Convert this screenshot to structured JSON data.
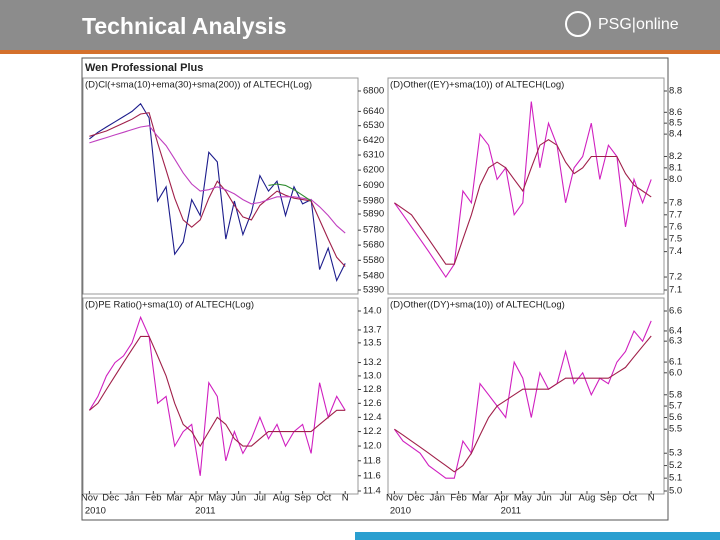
{
  "header": {
    "title": "Technical Analysis",
    "logo": "PSG|online",
    "panel_title": "Wen Professional Plus"
  },
  "x_group_labels": [
    "2010",
    "2011"
  ],
  "chart_data": [
    {
      "type": "line",
      "title": "(D)Cl(+sma(10)+ema(30)+sma(200)) of ALTECH(Log)",
      "log_scale": true,
      "x": [
        0,
        0.4,
        0.8,
        1.2,
        1.6,
        2,
        2.4,
        2.8,
        3.2,
        3.6,
        4,
        4.4,
        4.8,
        5.2,
        5.6,
        6,
        6.4,
        6.8,
        7.2,
        7.6,
        8,
        8.4,
        8.8,
        9.2,
        9.6,
        10,
        10.4,
        10.8,
        11.2,
        11.6,
        12
      ],
      "xlim": [
        -0.3,
        12.6
      ],
      "xticks": [
        {
          "value": 0,
          "label": "Nov"
        },
        {
          "value": 1,
          "label": "Dec"
        },
        {
          "value": 2,
          "label": "Jan"
        },
        {
          "value": 3,
          "label": "Feb"
        },
        {
          "value": 4,
          "label": "Mar"
        },
        {
          "value": 5,
          "label": "Apr"
        },
        {
          "value": 6,
          "label": "May"
        },
        {
          "value": 7,
          "label": "Jun"
        },
        {
          "value": 8,
          "label": "Jul"
        },
        {
          "value": 9,
          "label": "Aug"
        },
        {
          "value": 10,
          "label": "Sep"
        },
        {
          "value": 11,
          "label": "Oct"
        },
        {
          "value": 12,
          "label": "N"
        }
      ],
      "ylim": [
        5390,
        6800
      ],
      "yticks": [
        6800,
        6640,
        6530,
        6420,
        6310,
        6200,
        6090,
        5980,
        5890,
        5780,
        5680,
        5580,
        5480,
        5390
      ],
      "series": [
        {
          "color": "#1c1c8c",
          "values": [
            6430,
            6480,
            6520,
            6560,
            6600,
            6640,
            6700,
            6590,
            5980,
            6080,
            5620,
            5700,
            5990,
            5880,
            6330,
            6260,
            5720,
            5980,
            5750,
            5900,
            6160,
            6050,
            6120,
            5880,
            6080,
            5960,
            5990,
            5520,
            5660,
            5450,
            5560
          ]
        },
        {
          "color": "#a0204a",
          "values": [
            6450,
            6470,
            6490,
            6520,
            6550,
            6580,
            6620,
            6630,
            6400,
            6200,
            6000,
            5850,
            5800,
            5850,
            6000,
            6120,
            6050,
            5950,
            5870,
            5850,
            5950,
            6000,
            6050,
            6020,
            6000,
            5990,
            5980,
            5850,
            5720,
            5600,
            5540
          ]
        },
        {
          "color": "#c040c0",
          "values": [
            6400,
            6420,
            6440,
            6460,
            6480,
            6500,
            6520,
            6530,
            6450,
            6380,
            6280,
            6180,
            6100,
            6050,
            6060,
            6080,
            6060,
            6030,
            5990,
            5960,
            5970,
            5990,
            6010,
            6010,
            6010,
            6000,
            5990,
            5940,
            5880,
            5810,
            5760
          ]
        },
        {
          "color": "#2e8b2e",
          "values": [
            null,
            null,
            null,
            null,
            null,
            null,
            null,
            null,
            null,
            null,
            null,
            null,
            null,
            null,
            null,
            null,
            null,
            null,
            null,
            null,
            null,
            6090,
            6100,
            6090,
            6060,
            6020,
            5980,
            null,
            null,
            null,
            null
          ]
        }
      ]
    },
    {
      "type": "line",
      "title": "(D)Other((EY)+sma(10)) of ALTECH(Log)",
      "log_scale": true,
      "x": [
        0,
        0.4,
        0.8,
        1.2,
        1.6,
        2,
        2.4,
        2.8,
        3.2,
        3.6,
        4,
        4.4,
        4.8,
        5.2,
        5.6,
        6,
        6.4,
        6.8,
        7.2,
        7.6,
        8,
        8.4,
        8.8,
        9.2,
        9.6,
        10,
        10.4,
        10.8,
        11.2,
        11.6,
        12
      ],
      "xlim": [
        -0.3,
        12.6
      ],
      "xticks": [
        {
          "value": 0,
          "label": "Nov"
        },
        {
          "value": 1,
          "label": "Dec"
        },
        {
          "value": 2,
          "label": "Jan"
        },
        {
          "value": 3,
          "label": "Feb"
        },
        {
          "value": 4,
          "label": "Mar"
        },
        {
          "value": 5,
          "label": "Apr"
        },
        {
          "value": 6,
          "label": "May"
        },
        {
          "value": 7,
          "label": "Jun"
        },
        {
          "value": 8,
          "label": "Jul"
        },
        {
          "value": 9,
          "label": "Aug"
        },
        {
          "value": 10,
          "label": "Sep"
        },
        {
          "value": 11,
          "label": "Oct"
        },
        {
          "value": 12,
          "label": "N"
        }
      ],
      "ylim": [
        7.1,
        8.8
      ],
      "yticks": [
        8.8,
        8.6,
        8.5,
        8.4,
        8.2,
        8.1,
        {
          "value": 8,
          "label": "8.0"
        },
        7.8,
        7.7,
        7.6,
        7.5,
        7.4,
        7.2,
        7.1
      ],
      "series": [
        {
          "color": "#d020c0",
          "values": [
            7.8,
            7.7,
            7.6,
            7.5,
            7.4,
            7.3,
            7.2,
            7.3,
            7.9,
            7.8,
            8.4,
            8.3,
            8.0,
            8.1,
            7.7,
            7.8,
            8.7,
            8.1,
            8.5,
            8.3,
            7.8,
            8.1,
            8.2,
            8.5,
            8.0,
            8.3,
            8.2,
            7.6,
            8.0,
            7.8,
            8.0
          ]
        },
        {
          "color": "#a0204a",
          "values": [
            7.8,
            7.75,
            7.7,
            7.6,
            7.5,
            7.4,
            7.3,
            7.3,
            7.5,
            7.7,
            7.95,
            8.1,
            8.15,
            8.1,
            8.0,
            7.9,
            8.1,
            8.3,
            8.35,
            8.3,
            8.15,
            8.05,
            8.1,
            8.2,
            8.2,
            8.2,
            8.2,
            8.05,
            7.95,
            7.9,
            7.85
          ]
        }
      ]
    },
    {
      "type": "line",
      "title": "(D)PE Ratio()+sma(10) of ALTECH(Log)",
      "log_scale": true,
      "x": [
        0,
        0.4,
        0.8,
        1.2,
        1.6,
        2,
        2.4,
        2.8,
        3.2,
        3.6,
        4,
        4.4,
        4.8,
        5.2,
        5.6,
        6,
        6.4,
        6.8,
        7.2,
        7.6,
        8,
        8.4,
        8.8,
        9.2,
        9.6,
        10,
        10.4,
        10.8,
        11.2,
        11.6,
        12
      ],
      "xlim": [
        -0.3,
        12.6
      ],
      "xticks": [
        {
          "value": 0,
          "label": "Nov"
        },
        {
          "value": 1,
          "label": "Dec"
        },
        {
          "value": 2,
          "label": "Jan"
        },
        {
          "value": 3,
          "label": "Feb"
        },
        {
          "value": 4,
          "label": "Mar"
        },
        {
          "value": 5,
          "label": "Apr"
        },
        {
          "value": 6,
          "label": "May"
        },
        {
          "value": 7,
          "label": "Jun"
        },
        {
          "value": 8,
          "label": "Jul"
        },
        {
          "value": 9,
          "label": "Aug"
        },
        {
          "value": 10,
          "label": "Sep"
        },
        {
          "value": 11,
          "label": "Oct"
        },
        {
          "value": 12,
          "label": "N"
        }
      ],
      "ylim": [
        11.4,
        14.0
      ],
      "yticks": [
        {
          "value": 14,
          "label": "14.0"
        },
        13.7,
        13.5,
        13.2,
        {
          "value": 13,
          "label": "13.0"
        },
        12.8,
        12.6,
        12.4,
        12.2,
        {
          "value": 12,
          "label": "12.0"
        },
        11.8,
        11.6,
        11.4
      ],
      "series": [
        {
          "color": "#d020c0",
          "values": [
            12.5,
            12.7,
            13.0,
            13.2,
            13.3,
            13.5,
            13.9,
            13.6,
            12.6,
            12.7,
            12.0,
            12.2,
            12.3,
            11.6,
            12.9,
            12.7,
            11.8,
            12.2,
            11.9,
            12.1,
            12.4,
            12.1,
            12.3,
            12.0,
            12.2,
            12.3,
            11.9,
            12.9,
            12.4,
            12.7,
            12.5
          ]
        },
        {
          "color": "#a0204a",
          "values": [
            12.5,
            12.6,
            12.8,
            13.0,
            13.2,
            13.4,
            13.6,
            13.6,
            13.3,
            13.0,
            12.6,
            12.3,
            12.2,
            12.0,
            12.2,
            12.4,
            12.3,
            12.1,
            12.0,
            12.0,
            12.1,
            12.2,
            12.2,
            12.2,
            12.2,
            12.2,
            12.2,
            12.3,
            12.4,
            12.5,
            12.5
          ]
        }
      ]
    },
    {
      "type": "line",
      "title": "(D)Other((DY)+sma(10)) of ALTECH(Log)",
      "log_scale": true,
      "x": [
        0,
        0.4,
        0.8,
        1.2,
        1.6,
        2,
        2.4,
        2.8,
        3.2,
        3.6,
        4,
        4.4,
        4.8,
        5.2,
        5.6,
        6,
        6.4,
        6.8,
        7.2,
        7.6,
        8,
        8.4,
        8.8,
        9.2,
        9.6,
        10,
        10.4,
        10.8,
        11.2,
        11.6,
        12
      ],
      "xlim": [
        -0.3,
        12.6
      ],
      "xticks": [
        {
          "value": 0,
          "label": "Nov"
        },
        {
          "value": 1,
          "label": "Dec"
        },
        {
          "value": 2,
          "label": "Jan"
        },
        {
          "value": 3,
          "label": "Feb"
        },
        {
          "value": 4,
          "label": "Mar"
        },
        {
          "value": 5,
          "label": "Apr"
        },
        {
          "value": 6,
          "label": "May"
        },
        {
          "value": 7,
          "label": "Jun"
        },
        {
          "value": 8,
          "label": "Jul"
        },
        {
          "value": 9,
          "label": "Aug"
        },
        {
          "value": 10,
          "label": "Sep"
        },
        {
          "value": 11,
          "label": "Oct"
        },
        {
          "value": 12,
          "label": "N"
        }
      ],
      "ylim": [
        5.0,
        6.6
      ],
      "yticks": [
        6.6,
        6.4,
        6.3,
        6.1,
        {
          "value": 6,
          "label": "6.0"
        },
        5.8,
        5.7,
        5.6,
        5.5,
        5.3,
        5.2,
        5.1,
        {
          "value": 5,
          "label": "5.0"
        }
      ],
      "series": [
        {
          "color": "#d020c0",
          "values": [
            5.5,
            5.4,
            5.35,
            5.3,
            5.2,
            5.15,
            5.1,
            5.1,
            5.4,
            5.3,
            5.9,
            5.8,
            5.7,
            5.6,
            6.1,
            5.95,
            5.6,
            6.0,
            5.85,
            5.9,
            6.2,
            5.9,
            6.0,
            5.8,
            5.95,
            5.9,
            6.1,
            6.2,
            6.4,
            6.3,
            6.5
          ]
        },
        {
          "color": "#a0204a",
          "values": [
            5.5,
            5.45,
            5.4,
            5.35,
            5.3,
            5.25,
            5.2,
            5.15,
            5.2,
            5.3,
            5.45,
            5.6,
            5.7,
            5.75,
            5.8,
            5.85,
            5.85,
            5.85,
            5.85,
            5.9,
            5.95,
            5.95,
            5.95,
            5.95,
            5.95,
            5.95,
            6.0,
            6.05,
            6.15,
            6.25,
            6.35
          ]
        }
      ]
    }
  ]
}
